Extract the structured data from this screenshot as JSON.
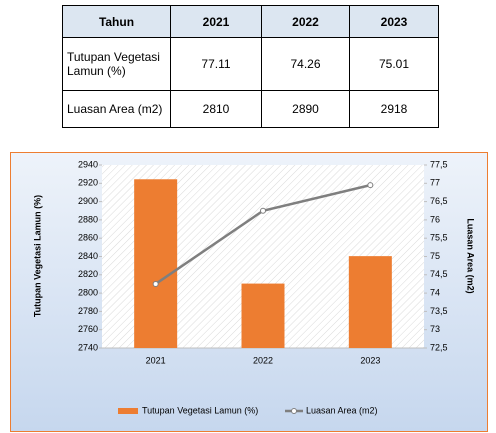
{
  "table": {
    "header": [
      "Tahun",
      "2021",
      "2022",
      "2023"
    ],
    "rows": [
      [
        "Tutupan Vegetasi Lamun (%)",
        77.11,
        74.26,
        75.01
      ],
      [
        "Luasan Area (m2)",
        2810,
        2890,
        2918
      ]
    ]
  },
  "chart_data": {
    "type": "combo",
    "categories": [
      "2021",
      "2022",
      "2023"
    ],
    "series": [
      {
        "name": "Tutupan Vegetasi Lamun (%)",
        "type": "bar",
        "axis": "y2",
        "color": "#ed7d31",
        "values": [
          77.11,
          74.26,
          75.01
        ]
      },
      {
        "name": "Luasan Area (m2)",
        "type": "line",
        "axis": "y",
        "color": "#7f7f7f",
        "values": [
          2810,
          2890,
          2918
        ]
      }
    ],
    "ylabel": "Tutupan Vegetasi Lamun (%)",
    "y2label": "Luasan Area (m2)",
    "ylim": [
      2740,
      2940
    ],
    "yticks": [
      2740,
      2760,
      2780,
      2800,
      2820,
      2840,
      2860,
      2880,
      2900,
      2920,
      2940
    ],
    "y2lim": [
      72.5,
      77.5
    ],
    "y2ticks": [
      {
        "value": 72.5,
        "label": "72,5"
      },
      73,
      {
        "value": 73.5,
        "label": "73,5"
      },
      74,
      {
        "value": 74.5,
        "label": "74,5"
      },
      75,
      {
        "value": 75.5,
        "label": "75,5"
      },
      76,
      {
        "value": 76.5,
        "label": "76,5"
      },
      77,
      {
        "value": 77.5,
        "label": "77,5"
      }
    ],
    "legend": "bottom"
  }
}
